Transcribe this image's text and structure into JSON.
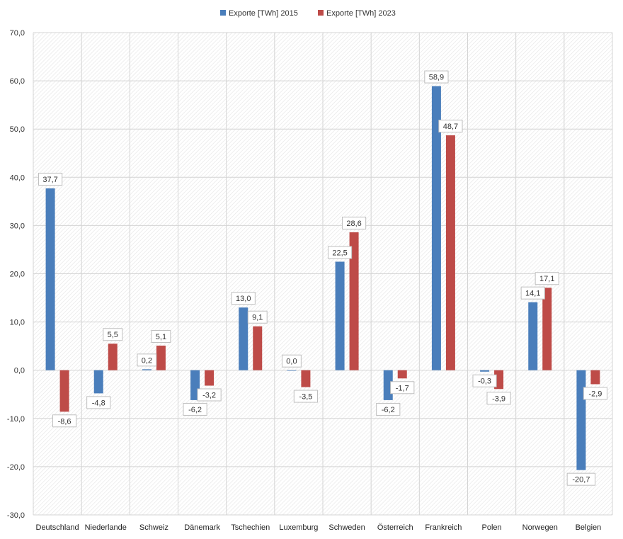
{
  "chart_data": {
    "type": "bar",
    "title": "",
    "xlabel": "",
    "ylabel": "",
    "ylim": [
      -30,
      70
    ],
    "ytick_step": 10,
    "grid": true,
    "legend_position": "top-center",
    "categories": [
      "Deutschland",
      "Niederlande",
      "Schweiz",
      "Dänemark",
      "Tschechien",
      "Luxemburg",
      "Schweden",
      "Österreich",
      "Frankreich",
      "Polen",
      "Norwegen",
      "Belgien"
    ],
    "series": [
      {
        "name": "Exporte [TWh] 2015",
        "color": "#4a7ebb",
        "values": [
          37.7,
          -4.8,
          0.2,
          -6.2,
          13.0,
          0.0,
          22.5,
          -6.2,
          58.9,
          -0.3,
          14.1,
          -20.7
        ]
      },
      {
        "name": "Exporte [TWh] 2023",
        "color": "#be4b48",
        "values": [
          -8.6,
          5.5,
          5.1,
          -3.2,
          9.1,
          -3.5,
          28.6,
          -1.7,
          48.7,
          -3.9,
          17.1,
          -2.9
        ]
      }
    ]
  }
}
